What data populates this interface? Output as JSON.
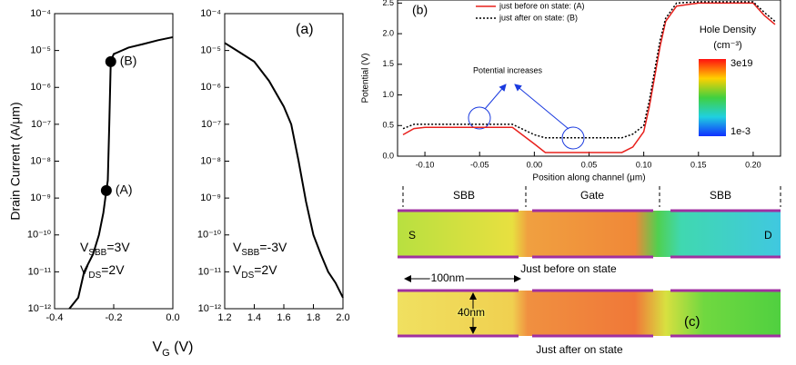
{
  "chart_data": [
    {
      "type": "line",
      "log_y": true,
      "y_label": "Drain Current (A/μm)",
      "xlim": [
        -0.4,
        0.0
      ],
      "xticks": [
        -0.4,
        -0.2,
        {
          "value": 0,
          "label": "0.0"
        }
      ],
      "ylim": [
        1e-12,
        0.0001
      ],
      "yticks": [
        {
          "value": 1e-12,
          "label": "10⁻¹²"
        },
        {
          "value": 1e-11,
          "label": "10⁻¹¹"
        },
        {
          "value": 1e-10,
          "label": "10⁻¹⁰"
        },
        {
          "value": 1e-09,
          "label": "10⁻⁹"
        },
        {
          "value": 1e-08,
          "label": "10⁻⁸"
        },
        {
          "value": 1e-07,
          "label": "10⁻⁷"
        },
        {
          "value": 1e-06,
          "label": "10⁻⁶"
        },
        {
          "value": 1e-05,
          "label": "10⁻⁵"
        },
        {
          "value": 0.0001,
          "label": "10⁻⁴"
        }
      ],
      "series": [
        {
          "color": "#000000",
          "x": [
            -0.35,
            -0.32,
            -0.3,
            -0.27,
            -0.25,
            -0.235,
            -0.225,
            -0.22,
            -0.215,
            -0.21,
            -0.2,
            -0.15,
            -0.1,
            -0.05,
            0.0
          ],
          "values": [
            1e-12,
            2e-12,
            1e-11,
            3e-11,
            1e-10,
            4e-10,
            1.6e-09,
            3e-09,
            1e-07,
            5e-06,
            8e-06,
            1.2e-05,
            1.5e-05,
            1.9e-05,
            2.3e-05
          ]
        }
      ],
      "points": [
        {
          "label": "(A)",
          "x": -0.225,
          "value": 1.6e-09
        },
        {
          "label": "(B)",
          "x": -0.21,
          "value": 5e-06
        }
      ],
      "notes": [
        {
          "base": "V",
          "sub": "SBB",
          "rest": "=3V"
        },
        {
          "base": "V",
          "sub": "DS",
          "rest": "=2V"
        }
      ]
    },
    {
      "type": "line",
      "log_y": true,
      "panel_label": "(a)",
      "xlim": [
        1.2,
        2.0
      ],
      "xticks": [
        1.2,
        1.4,
        1.6,
        1.8,
        {
          "value": 2,
          "label": "2.0"
        }
      ],
      "ylim": [
        1e-12,
        0.0001
      ],
      "yticks": [
        {
          "value": 1e-12,
          "label": "10⁻¹²"
        },
        {
          "value": 1e-11,
          "label": "10⁻¹¹"
        },
        {
          "value": 1e-10,
          "label": "10⁻¹⁰"
        },
        {
          "value": 1e-09,
          "label": "10⁻⁹"
        },
        {
          "value": 1e-08,
          "label": "10⁻⁸"
        },
        {
          "value": 1e-07,
          "label": "10⁻⁷"
        },
        {
          "value": 1e-06,
          "label": "10⁻⁶"
        },
        {
          "value": 1e-05,
          "label": "10⁻⁵"
        },
        {
          "value": 0.0001,
          "label": "10⁻⁴"
        }
      ],
      "series": [
        {
          "color": "#000000",
          "x": [
            1.2,
            1.3,
            1.4,
            1.5,
            1.6,
            1.65,
            1.7,
            1.75,
            1.8,
            1.85,
            1.9,
            1.95,
            2.0
          ],
          "values": [
            1.6e-05,
            9e-06,
            5e-06,
            1.5e-06,
            3e-07,
            1e-07,
            1e-08,
            8e-10,
            1e-10,
            3e-11,
            1e-11,
            5e-12,
            2e-12
          ]
        }
      ],
      "notes": [
        {
          "base": "V",
          "sub": "SBB",
          "rest": "=-3V"
        },
        {
          "base": "V",
          "sub": "DS",
          "rest": "=2V"
        }
      ]
    },
    {
      "type": "line",
      "log_y": false,
      "panel_label": "(b)",
      "y_label": "Potential (V)",
      "x_label": "Position along channel (μm)",
      "legend": "top-left",
      "xlim": [
        -0.125,
        0.225
      ],
      "xticks": [
        {
          "value": -0.1,
          "label": "-0.10"
        },
        -0.05,
        {
          "value": 0,
          "label": "0.00"
        },
        0.05,
        {
          "value": 0.1,
          "label": "0.10"
        },
        0.15,
        {
          "value": 0.2,
          "label": "0.20"
        }
      ],
      "ylim": [
        0,
        2.55
      ],
      "yticks": [
        {
          "value": 0,
          "label": "0.0"
        },
        0.5,
        {
          "value": 1,
          "label": "1.0"
        },
        1.5,
        {
          "value": 2,
          "label": "2.0"
        },
        2.5
      ],
      "series": [
        {
          "name": "just before on state: (A)",
          "color": "#e8201c",
          "dash": false,
          "x": [
            -0.12,
            -0.11,
            -0.1,
            -0.05,
            -0.02,
            0.0,
            0.01,
            0.05,
            0.08,
            0.09,
            0.1,
            0.105,
            0.11,
            0.115,
            0.12,
            0.13,
            0.15,
            0.2,
            0.21,
            0.22
          ],
          "values": [
            0.35,
            0.45,
            0.47,
            0.47,
            0.47,
            0.2,
            0.06,
            0.06,
            0.06,
            0.15,
            0.4,
            0.8,
            1.3,
            1.8,
            2.2,
            2.45,
            2.5,
            2.5,
            2.3,
            2.15
          ]
        },
        {
          "name": "just after on state: (B)",
          "color": "#000000",
          "dash": true,
          "x": [
            -0.12,
            -0.11,
            -0.1,
            -0.05,
            -0.02,
            0.0,
            0.01,
            0.05,
            0.08,
            0.09,
            0.1,
            0.105,
            0.11,
            0.115,
            0.12,
            0.13,
            0.15,
            0.2,
            0.21,
            0.22
          ],
          "values": [
            0.45,
            0.52,
            0.52,
            0.52,
            0.52,
            0.35,
            0.3,
            0.3,
            0.3,
            0.36,
            0.5,
            0.9,
            1.4,
            1.9,
            2.25,
            2.5,
            2.52,
            2.52,
            2.35,
            2.2
          ]
        }
      ]
    }
  ],
  "annotations": {
    "x_label_a": {
      "base": "V",
      "sub": "G",
      "rest": " (V)"
    },
    "potential_increases": "Potential increases",
    "panel_c": "(c)"
  },
  "colorbar": {
    "title": "Hole Density",
    "unit": "(cm⁻³)",
    "max_label": "3e19",
    "min_label": "1e-3"
  },
  "device": {
    "regions": [
      "SBB",
      "Gate",
      "SBB"
    ],
    "source": "S",
    "drain": "D",
    "before_caption": "Just before on state",
    "after_caption": "Just after on state",
    "length": "100nm",
    "width": "40nm"
  }
}
